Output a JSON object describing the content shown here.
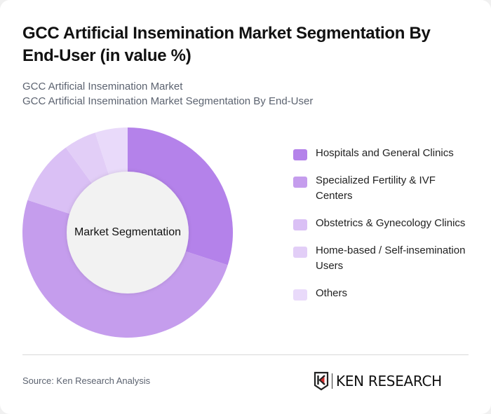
{
  "header": {
    "title": "GCC Artificial Insemination Market Segmentation By End-User (in value %)",
    "subtitle_line1": "GCC Artificial Insemination Market",
    "subtitle_line2": "GCC Artificial Insemination Market Segmentation By End-User"
  },
  "donut": {
    "center_label": "Market Segmentation"
  },
  "legend": {
    "items": [
      {
        "label": "Hospitals and General Clinics",
        "color": "#b482ea"
      },
      {
        "label": "Specialized Fertility & IVF Centers",
        "color": "#c59ded"
      },
      {
        "label": "Obstetrics & Gynecology Clinics",
        "color": "#dac0f5"
      },
      {
        "label": "Home-based / Self-insemination Users",
        "color": "#e2cef7"
      },
      {
        "label": "Others",
        "color": "#e9dafa"
      }
    ]
  },
  "footer": {
    "source": "Source: Ken Research Analysis",
    "logo_text": "KEN RESEARCH",
    "logo_accent": "#d32f2f"
  },
  "chart_data": {
    "type": "pie",
    "variant": "donut",
    "title": "GCC Artificial Insemination Market Segmentation By End-User (in value %)",
    "subtitle": "GCC Artificial Insemination Market / GCC Artificial Insemination Market Segmentation By End-User",
    "center_label": "Market Segmentation",
    "categories": [
      "Hospitals and General Clinics",
      "Specialized Fertility & IVF Centers",
      "Obstetrics & Gynecology Clinics",
      "Home-based / Self-insemination Users",
      "Others"
    ],
    "values": [
      30,
      50,
      10,
      5,
      5
    ],
    "colors": [
      "#b482ea",
      "#c59ded",
      "#dac0f5",
      "#e2cef7",
      "#e9dafa"
    ],
    "unit": "%",
    "start_angle": "12 o'clock, clockwise",
    "legend_position": "right",
    "source": "Source: Ken Research Analysis"
  }
}
